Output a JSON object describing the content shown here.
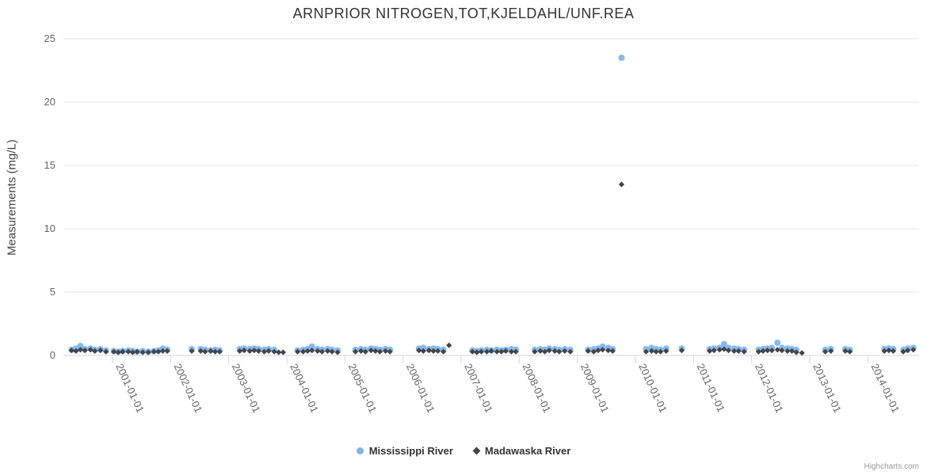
{
  "credit": "Highcharts.com",
  "colors": {
    "mississippi": "#7cb5ec",
    "madawaska": "#434348",
    "grid": "#e6e6e6",
    "axis_line": "#ccd6eb",
    "axis_label": "#666666",
    "title": "#333333",
    "credit": "#999999"
  },
  "legend": {
    "items": [
      {
        "label": "Mississippi River",
        "marker": "circle"
      },
      {
        "label": "Madawaska River",
        "marker": "diamond"
      }
    ]
  },
  "chart_data": {
    "type": "scatter",
    "title": "ARNPRIOR NITROGEN,TOT,KJELDAHL/UNF.REA",
    "xlabel": "",
    "ylabel": "Measurements (mg/L)",
    "ylim": [
      0,
      25
    ],
    "yticks": [
      0,
      5,
      10,
      15,
      20,
      25
    ],
    "xticks": [
      "2001-01-01",
      "2002-01-01",
      "2003-01-01",
      "2004-01-01",
      "2005-01-01",
      "2006-01-01",
      "2007-01-01",
      "2008-01-01",
      "2009-01-01",
      "2010-01-01",
      "2011-01-01",
      "2012-01-01",
      "2013-01-01",
      "2014-01-01"
    ],
    "grid": "horizontal-only",
    "legend_position": "bottom-center",
    "x_label_rotation_deg": 65,
    "series": [
      {
        "name": "Mississippi River",
        "marker": "circle",
        "color": "#7cb5ec",
        "points": [
          [
            "2000-04-18",
            0.45
          ],
          [
            "2000-05-16",
            0.55
          ],
          [
            "2000-06-13",
            0.75
          ],
          [
            "2000-07-11",
            0.5
          ],
          [
            "2000-08-15",
            0.55
          ],
          [
            "2000-09-12",
            0.45
          ],
          [
            "2000-10-17",
            0.5
          ],
          [
            "2000-11-21",
            0.4
          ],
          [
            "2001-01-09",
            0.35
          ],
          [
            "2001-02-06",
            0.3
          ],
          [
            "2001-03-06",
            0.35
          ],
          [
            "2001-04-10",
            0.4
          ],
          [
            "2001-05-08",
            0.35
          ],
          [
            "2001-06-05",
            0.3
          ],
          [
            "2001-07-10",
            0.35
          ],
          [
            "2001-08-14",
            0.3
          ],
          [
            "2001-09-18",
            0.35
          ],
          [
            "2001-10-16",
            0.4
          ],
          [
            "2001-11-13",
            0.55
          ],
          [
            "2001-12-11",
            0.45
          ],
          [
            "2002-05-14",
            0.5
          ],
          [
            "2002-07-09",
            0.5
          ],
          [
            "2002-08-06",
            0.45
          ],
          [
            "2002-09-10",
            0.4
          ],
          [
            "2002-10-08",
            0.45
          ],
          [
            "2002-11-05",
            0.4
          ],
          [
            "2003-03-11",
            0.5
          ],
          [
            "2003-04-08",
            0.55
          ],
          [
            "2003-05-13",
            0.5
          ],
          [
            "2003-06-10",
            0.55
          ],
          [
            "2003-07-08",
            0.5
          ],
          [
            "2003-08-12",
            0.45
          ],
          [
            "2003-09-09",
            0.5
          ],
          [
            "2003-10-14",
            0.45
          ],
          [
            "2004-03-09",
            0.4
          ],
          [
            "2004-04-13",
            0.45
          ],
          [
            "2004-05-11",
            0.5
          ],
          [
            "2004-06-08",
            0.7
          ],
          [
            "2004-07-13",
            0.5
          ],
          [
            "2004-08-10",
            0.45
          ],
          [
            "2004-09-14",
            0.5
          ],
          [
            "2004-10-12",
            0.45
          ],
          [
            "2004-11-16",
            0.4
          ],
          [
            "2005-03-08",
            0.45
          ],
          [
            "2005-04-12",
            0.5
          ],
          [
            "2005-05-10",
            0.45
          ],
          [
            "2005-06-14",
            0.55
          ],
          [
            "2005-07-12",
            0.5
          ],
          [
            "2005-08-09",
            0.45
          ],
          [
            "2005-09-13",
            0.5
          ],
          [
            "2005-10-11",
            0.45
          ],
          [
            "2006-04-11",
            0.55
          ],
          [
            "2006-05-09",
            0.6
          ],
          [
            "2006-06-13",
            0.5
          ],
          [
            "2006-07-11",
            0.55
          ],
          [
            "2006-08-08",
            0.5
          ],
          [
            "2006-09-12",
            0.45
          ],
          [
            "2007-03-13",
            0.4
          ],
          [
            "2007-04-10",
            0.35
          ],
          [
            "2007-05-08",
            0.4
          ],
          [
            "2007-06-12",
            0.45
          ],
          [
            "2007-07-10",
            0.4
          ],
          [
            "2007-08-14",
            0.45
          ],
          [
            "2007-09-11",
            0.4
          ],
          [
            "2007-10-09",
            0.45
          ],
          [
            "2007-11-13",
            0.5
          ],
          [
            "2007-12-11",
            0.45
          ],
          [
            "2008-04-08",
            0.45
          ],
          [
            "2008-05-13",
            0.5
          ],
          [
            "2008-06-10",
            0.45
          ],
          [
            "2008-07-08",
            0.55
          ],
          [
            "2008-08-12",
            0.5
          ],
          [
            "2008-09-09",
            0.45
          ],
          [
            "2008-10-14",
            0.5
          ],
          [
            "2008-11-18",
            0.45
          ],
          [
            "2009-03-10",
            0.45
          ],
          [
            "2009-04-14",
            0.5
          ],
          [
            "2009-05-12",
            0.55
          ],
          [
            "2009-06-09",
            0.7
          ],
          [
            "2009-07-14",
            0.6
          ],
          [
            "2009-08-11",
            0.5
          ],
          [
            "2009-10-06",
            23.5
          ],
          [
            "2010-03-09",
            0.5
          ],
          [
            "2010-04-13",
            0.6
          ],
          [
            "2010-05-11",
            0.5
          ],
          [
            "2010-06-08",
            0.45
          ],
          [
            "2010-07-13",
            0.55
          ],
          [
            "2010-10-19",
            0.55
          ],
          [
            "2011-04-12",
            0.5
          ],
          [
            "2011-05-10",
            0.55
          ],
          [
            "2011-06-14",
            0.6
          ],
          [
            "2011-07-12",
            0.9
          ],
          [
            "2011-08-09",
            0.6
          ],
          [
            "2011-09-13",
            0.55
          ],
          [
            "2011-10-11",
            0.5
          ],
          [
            "2011-11-15",
            0.45
          ],
          [
            "2012-02-14",
            0.45
          ],
          [
            "2012-03-13",
            0.5
          ],
          [
            "2012-04-10",
            0.55
          ],
          [
            "2012-05-08",
            0.6
          ],
          [
            "2012-06-12",
            1.0
          ],
          [
            "2012-07-10",
            0.6
          ],
          [
            "2012-08-14",
            0.55
          ],
          [
            "2012-09-11",
            0.5
          ],
          [
            "2012-10-09",
            0.45
          ],
          [
            "2013-04-09",
            0.45
          ],
          [
            "2013-05-14",
            0.5
          ],
          [
            "2013-08-13",
            0.5
          ],
          [
            "2013-09-10",
            0.45
          ],
          [
            "2014-04-15",
            0.5
          ],
          [
            "2014-05-13",
            0.55
          ],
          [
            "2014-06-10",
            0.5
          ],
          [
            "2014-08-12",
            0.45
          ],
          [
            "2014-09-09",
            0.55
          ],
          [
            "2014-10-14",
            0.6
          ]
        ]
      },
      {
        "name": "Madawaska River",
        "marker": "diamond",
        "color": "#434348",
        "points": [
          [
            "2000-04-18",
            0.4
          ],
          [
            "2000-05-16",
            0.35
          ],
          [
            "2000-06-13",
            0.45
          ],
          [
            "2000-07-11",
            0.4
          ],
          [
            "2000-08-15",
            0.45
          ],
          [
            "2000-09-12",
            0.35
          ],
          [
            "2000-10-17",
            0.4
          ],
          [
            "2000-11-21",
            0.3
          ],
          [
            "2001-01-09",
            0.3
          ],
          [
            "2001-02-06",
            0.25
          ],
          [
            "2001-03-06",
            0.3
          ],
          [
            "2001-04-10",
            0.3
          ],
          [
            "2001-05-08",
            0.25
          ],
          [
            "2001-06-05",
            0.3
          ],
          [
            "2001-07-10",
            0.25
          ],
          [
            "2001-08-14",
            0.25
          ],
          [
            "2001-09-18",
            0.3
          ],
          [
            "2001-10-16",
            0.3
          ],
          [
            "2001-11-13",
            0.35
          ],
          [
            "2001-12-11",
            0.35
          ],
          [
            "2002-05-14",
            0.35
          ],
          [
            "2002-07-09",
            0.35
          ],
          [
            "2002-08-06",
            0.3
          ],
          [
            "2002-09-10",
            0.35
          ],
          [
            "2002-10-08",
            0.3
          ],
          [
            "2002-11-05",
            0.3
          ],
          [
            "2003-03-11",
            0.35
          ],
          [
            "2003-04-08",
            0.4
          ],
          [
            "2003-05-13",
            0.35
          ],
          [
            "2003-06-10",
            0.4
          ],
          [
            "2003-07-08",
            0.35
          ],
          [
            "2003-08-12",
            0.3
          ],
          [
            "2003-09-09",
            0.35
          ],
          [
            "2003-10-14",
            0.3
          ],
          [
            "2003-11-11",
            0.25
          ],
          [
            "2003-12-09",
            0.25
          ],
          [
            "2004-03-09",
            0.3
          ],
          [
            "2004-04-13",
            0.3
          ],
          [
            "2004-05-11",
            0.35
          ],
          [
            "2004-06-08",
            0.4
          ],
          [
            "2004-07-13",
            0.35
          ],
          [
            "2004-08-10",
            0.3
          ],
          [
            "2004-09-14",
            0.35
          ],
          [
            "2004-10-12",
            0.3
          ],
          [
            "2004-11-16",
            0.25
          ],
          [
            "2005-03-08",
            0.3
          ],
          [
            "2005-04-12",
            0.35
          ],
          [
            "2005-05-10",
            0.3
          ],
          [
            "2005-06-14",
            0.4
          ],
          [
            "2005-07-12",
            0.35
          ],
          [
            "2005-08-09",
            0.3
          ],
          [
            "2005-09-13",
            0.35
          ],
          [
            "2005-10-11",
            0.3
          ],
          [
            "2006-04-11",
            0.4
          ],
          [
            "2006-05-09",
            0.35
          ],
          [
            "2006-06-13",
            0.4
          ],
          [
            "2006-07-11",
            0.35
          ],
          [
            "2006-08-08",
            0.35
          ],
          [
            "2006-09-12",
            0.3
          ],
          [
            "2006-10-17",
            0.8
          ],
          [
            "2007-03-13",
            0.3
          ],
          [
            "2007-04-10",
            0.25
          ],
          [
            "2007-05-08",
            0.3
          ],
          [
            "2007-06-12",
            0.3
          ],
          [
            "2007-07-10",
            0.35
          ],
          [
            "2007-08-14",
            0.3
          ],
          [
            "2007-09-11",
            0.3
          ],
          [
            "2007-10-09",
            0.35
          ],
          [
            "2007-11-13",
            0.3
          ],
          [
            "2007-12-11",
            0.3
          ],
          [
            "2008-04-08",
            0.3
          ],
          [
            "2008-05-13",
            0.35
          ],
          [
            "2008-06-10",
            0.3
          ],
          [
            "2008-07-08",
            0.4
          ],
          [
            "2008-08-12",
            0.35
          ],
          [
            "2008-09-09",
            0.3
          ],
          [
            "2008-10-14",
            0.35
          ],
          [
            "2008-11-18",
            0.3
          ],
          [
            "2009-03-10",
            0.35
          ],
          [
            "2009-04-14",
            0.3
          ],
          [
            "2009-05-12",
            0.4
          ],
          [
            "2009-06-09",
            0.45
          ],
          [
            "2009-07-14",
            0.4
          ],
          [
            "2009-08-11",
            0.35
          ],
          [
            "2009-10-06",
            13.5
          ],
          [
            "2010-03-09",
            0.3
          ],
          [
            "2010-04-13",
            0.35
          ],
          [
            "2010-05-11",
            0.3
          ],
          [
            "2010-06-08",
            0.3
          ],
          [
            "2010-07-13",
            0.35
          ],
          [
            "2010-10-19",
            0.4
          ],
          [
            "2011-04-12",
            0.35
          ],
          [
            "2011-05-10",
            0.4
          ],
          [
            "2011-06-14",
            0.45
          ],
          [
            "2011-07-12",
            0.5
          ],
          [
            "2011-08-09",
            0.4
          ],
          [
            "2011-09-13",
            0.35
          ],
          [
            "2011-10-11",
            0.35
          ],
          [
            "2011-11-15",
            0.3
          ],
          [
            "2012-02-14",
            0.3
          ],
          [
            "2012-03-13",
            0.35
          ],
          [
            "2012-04-10",
            0.4
          ],
          [
            "2012-05-08",
            0.4
          ],
          [
            "2012-06-12",
            0.45
          ],
          [
            "2012-07-10",
            0.4
          ],
          [
            "2012-08-14",
            0.35
          ],
          [
            "2012-09-11",
            0.35
          ],
          [
            "2012-10-09",
            0.25
          ],
          [
            "2012-11-13",
            0.2
          ],
          [
            "2013-04-09",
            0.3
          ],
          [
            "2013-05-14",
            0.35
          ],
          [
            "2013-08-13",
            0.35
          ],
          [
            "2013-09-10",
            0.3
          ],
          [
            "2014-04-15",
            0.35
          ],
          [
            "2014-05-13",
            0.4
          ],
          [
            "2014-06-10",
            0.35
          ],
          [
            "2014-08-12",
            0.3
          ],
          [
            "2014-09-09",
            0.4
          ],
          [
            "2014-10-14",
            0.45
          ]
        ]
      }
    ]
  }
}
